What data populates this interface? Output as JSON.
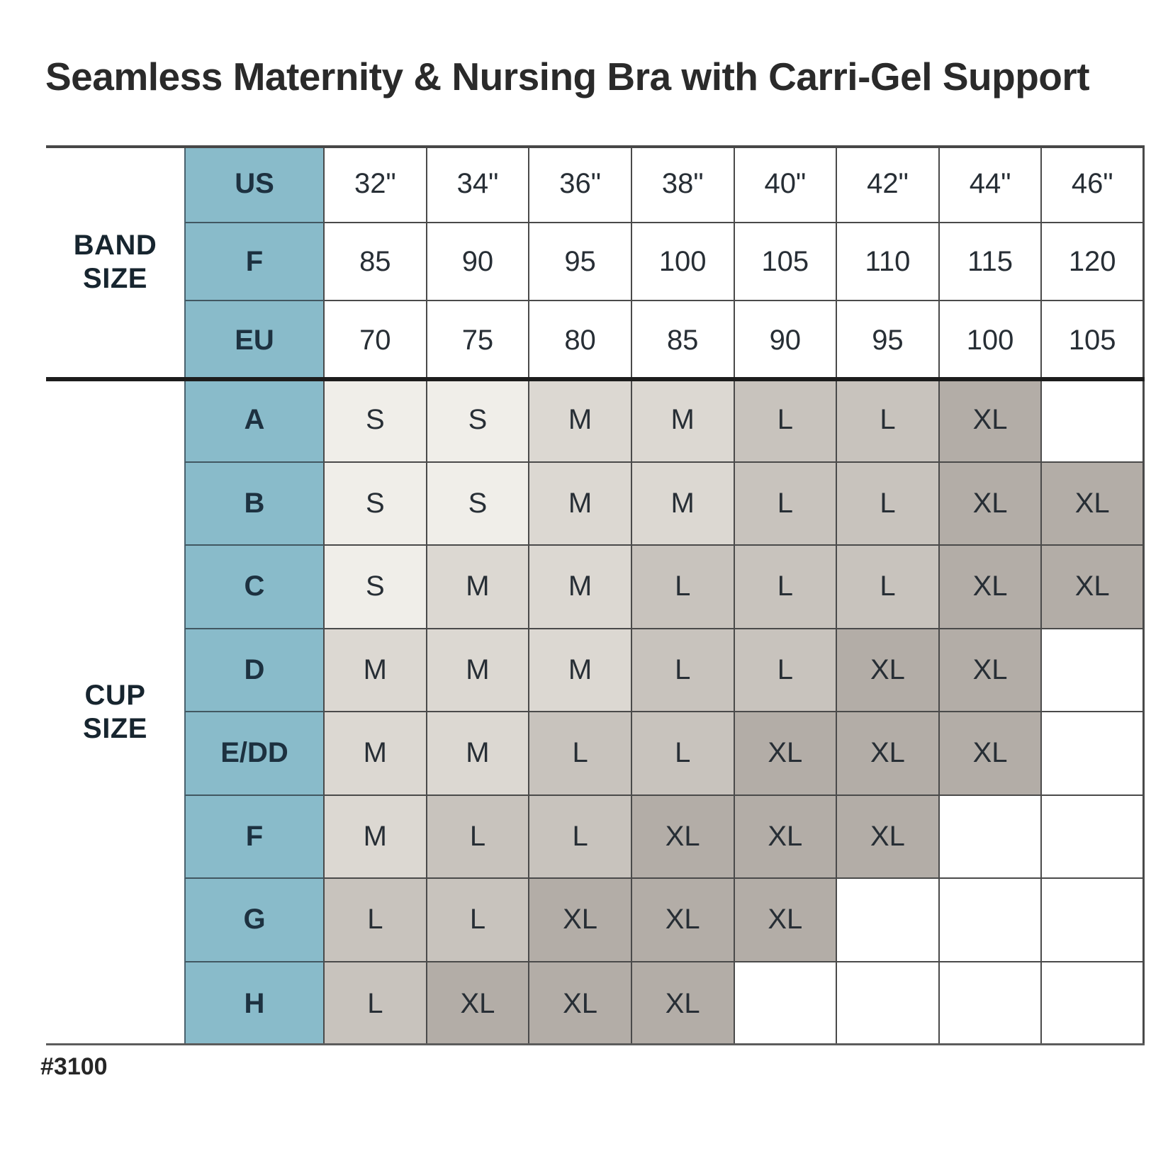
{
  "title": "Seamless Maternity & Nursing Bra with Carri-Gel Support",
  "footnote": "#3100",
  "colors": {
    "teal_header": "#89bbca",
    "shade_S": "#f0eee9",
    "shade_M": "#dcd8d2",
    "shade_L": "#c8c3bd",
    "shade_XL": "#b3ada7",
    "empty_cell": "#ffffff",
    "grid_line": "#4a4a4a",
    "section_separator": "#1d1d1d"
  },
  "chart_data": {
    "type": "table",
    "title": "Seamless Maternity & Nursing Bra with Carri-Gel Support",
    "row_group_labels": {
      "band": [
        "BAND",
        "SIZE"
      ],
      "cup": [
        "CUP",
        "SIZE"
      ]
    },
    "band_rows": [
      {
        "label": "US",
        "values": [
          "32\"",
          "34\"",
          "36\"",
          "38\"",
          "40\"",
          "42\"",
          "44\"",
          "46\""
        ]
      },
      {
        "label": "F",
        "values": [
          "85",
          "90",
          "95",
          "100",
          "105",
          "110",
          "115",
          "120"
        ]
      },
      {
        "label": "EU",
        "values": [
          "70",
          "75",
          "80",
          "85",
          "90",
          "95",
          "100",
          "105"
        ]
      }
    ],
    "cup_rows": [
      {
        "label": "A",
        "values": [
          "S",
          "S",
          "M",
          "M",
          "L",
          "L",
          "XL",
          ""
        ]
      },
      {
        "label": "B",
        "values": [
          "S",
          "S",
          "M",
          "M",
          "L",
          "L",
          "XL",
          "XL"
        ]
      },
      {
        "label": "C",
        "values": [
          "S",
          "M",
          "M",
          "L",
          "L",
          "L",
          "XL",
          "XL"
        ]
      },
      {
        "label": "D",
        "values": [
          "M",
          "M",
          "M",
          "L",
          "L",
          "XL",
          "XL",
          ""
        ]
      },
      {
        "label": "E/DD",
        "values": [
          "M",
          "M",
          "L",
          "L",
          "XL",
          "XL",
          "XL",
          ""
        ]
      },
      {
        "label": "F",
        "values": [
          "M",
          "L",
          "L",
          "XL",
          "XL",
          "XL",
          "",
          ""
        ]
      },
      {
        "label": "G",
        "values": [
          "L",
          "L",
          "XL",
          "XL",
          "XL",
          "",
          "",
          ""
        ]
      },
      {
        "label": "H",
        "values": [
          "L",
          "XL",
          "XL",
          "XL",
          "",
          "",
          "",
          ""
        ]
      }
    ]
  }
}
